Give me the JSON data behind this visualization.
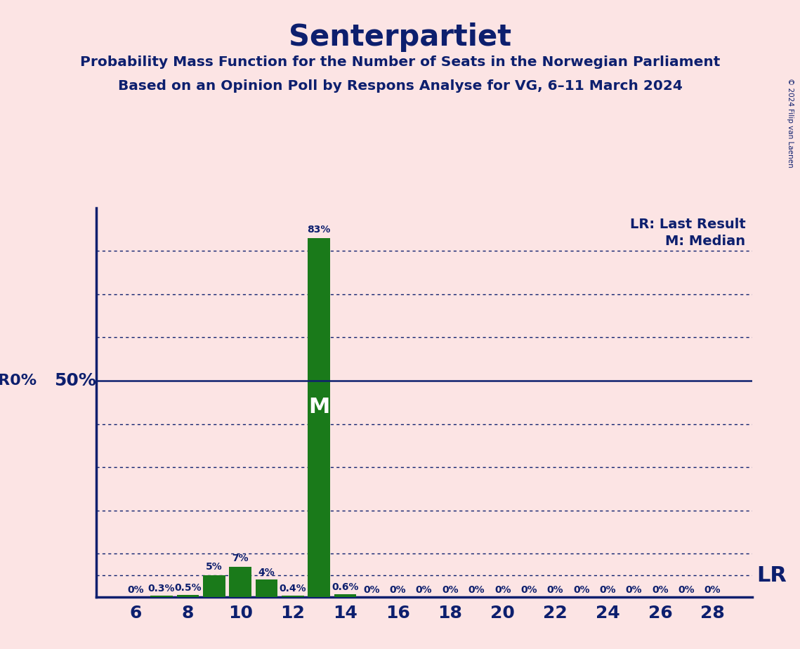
{
  "title": "Senterpartiet",
  "subtitle1": "Probability Mass Function for the Number of Seats in the Norwegian Parliament",
  "subtitle2": "Based on an Opinion Poll by Respons Analyse for VG, 6–11 March 2024",
  "copyright": "© 2024 Filip van Laenen",
  "background_color": "#fce4e4",
  "bar_color": "#1a7a1a",
  "title_color": "#0d1f6e",
  "axis_color": "#0d1f6e",
  "seats": [
    6,
    7,
    8,
    9,
    10,
    11,
    12,
    13,
    14,
    15,
    16,
    17,
    18,
    19,
    20,
    21,
    22,
    23,
    24,
    25,
    26,
    27,
    28
  ],
  "probabilities": [
    0.0,
    0.3,
    0.5,
    5.0,
    7.0,
    4.0,
    0.4,
    83.0,
    0.6,
    0.0,
    0.0,
    0.0,
    0.0,
    0.0,
    0.0,
    0.0,
    0.0,
    0.0,
    0.0,
    0.0,
    0.0,
    0.0,
    0.0
  ],
  "labels": [
    "0%",
    "0.3%",
    "0.5%",
    "5%",
    "7%",
    "4%",
    "0.4%",
    "83%",
    "0.6%",
    "0%",
    "0%",
    "0%",
    "0%",
    "0%",
    "0%",
    "0%",
    "0%",
    "0%",
    "0%",
    "0%",
    "0%",
    "0%",
    "0%"
  ],
  "median_seat": 13,
  "ylim": [
    0,
    90
  ],
  "dotted_y_values": [
    10,
    20,
    30,
    40,
    60,
    70,
    80
  ],
  "lr_y": 5,
  "solid_y": 50,
  "x_tick_seats": [
    6,
    8,
    10,
    12,
    14,
    16,
    18,
    20,
    22,
    24,
    26,
    28
  ],
  "legend_lr": "LR: Last Result",
  "legend_m": "M: Median"
}
